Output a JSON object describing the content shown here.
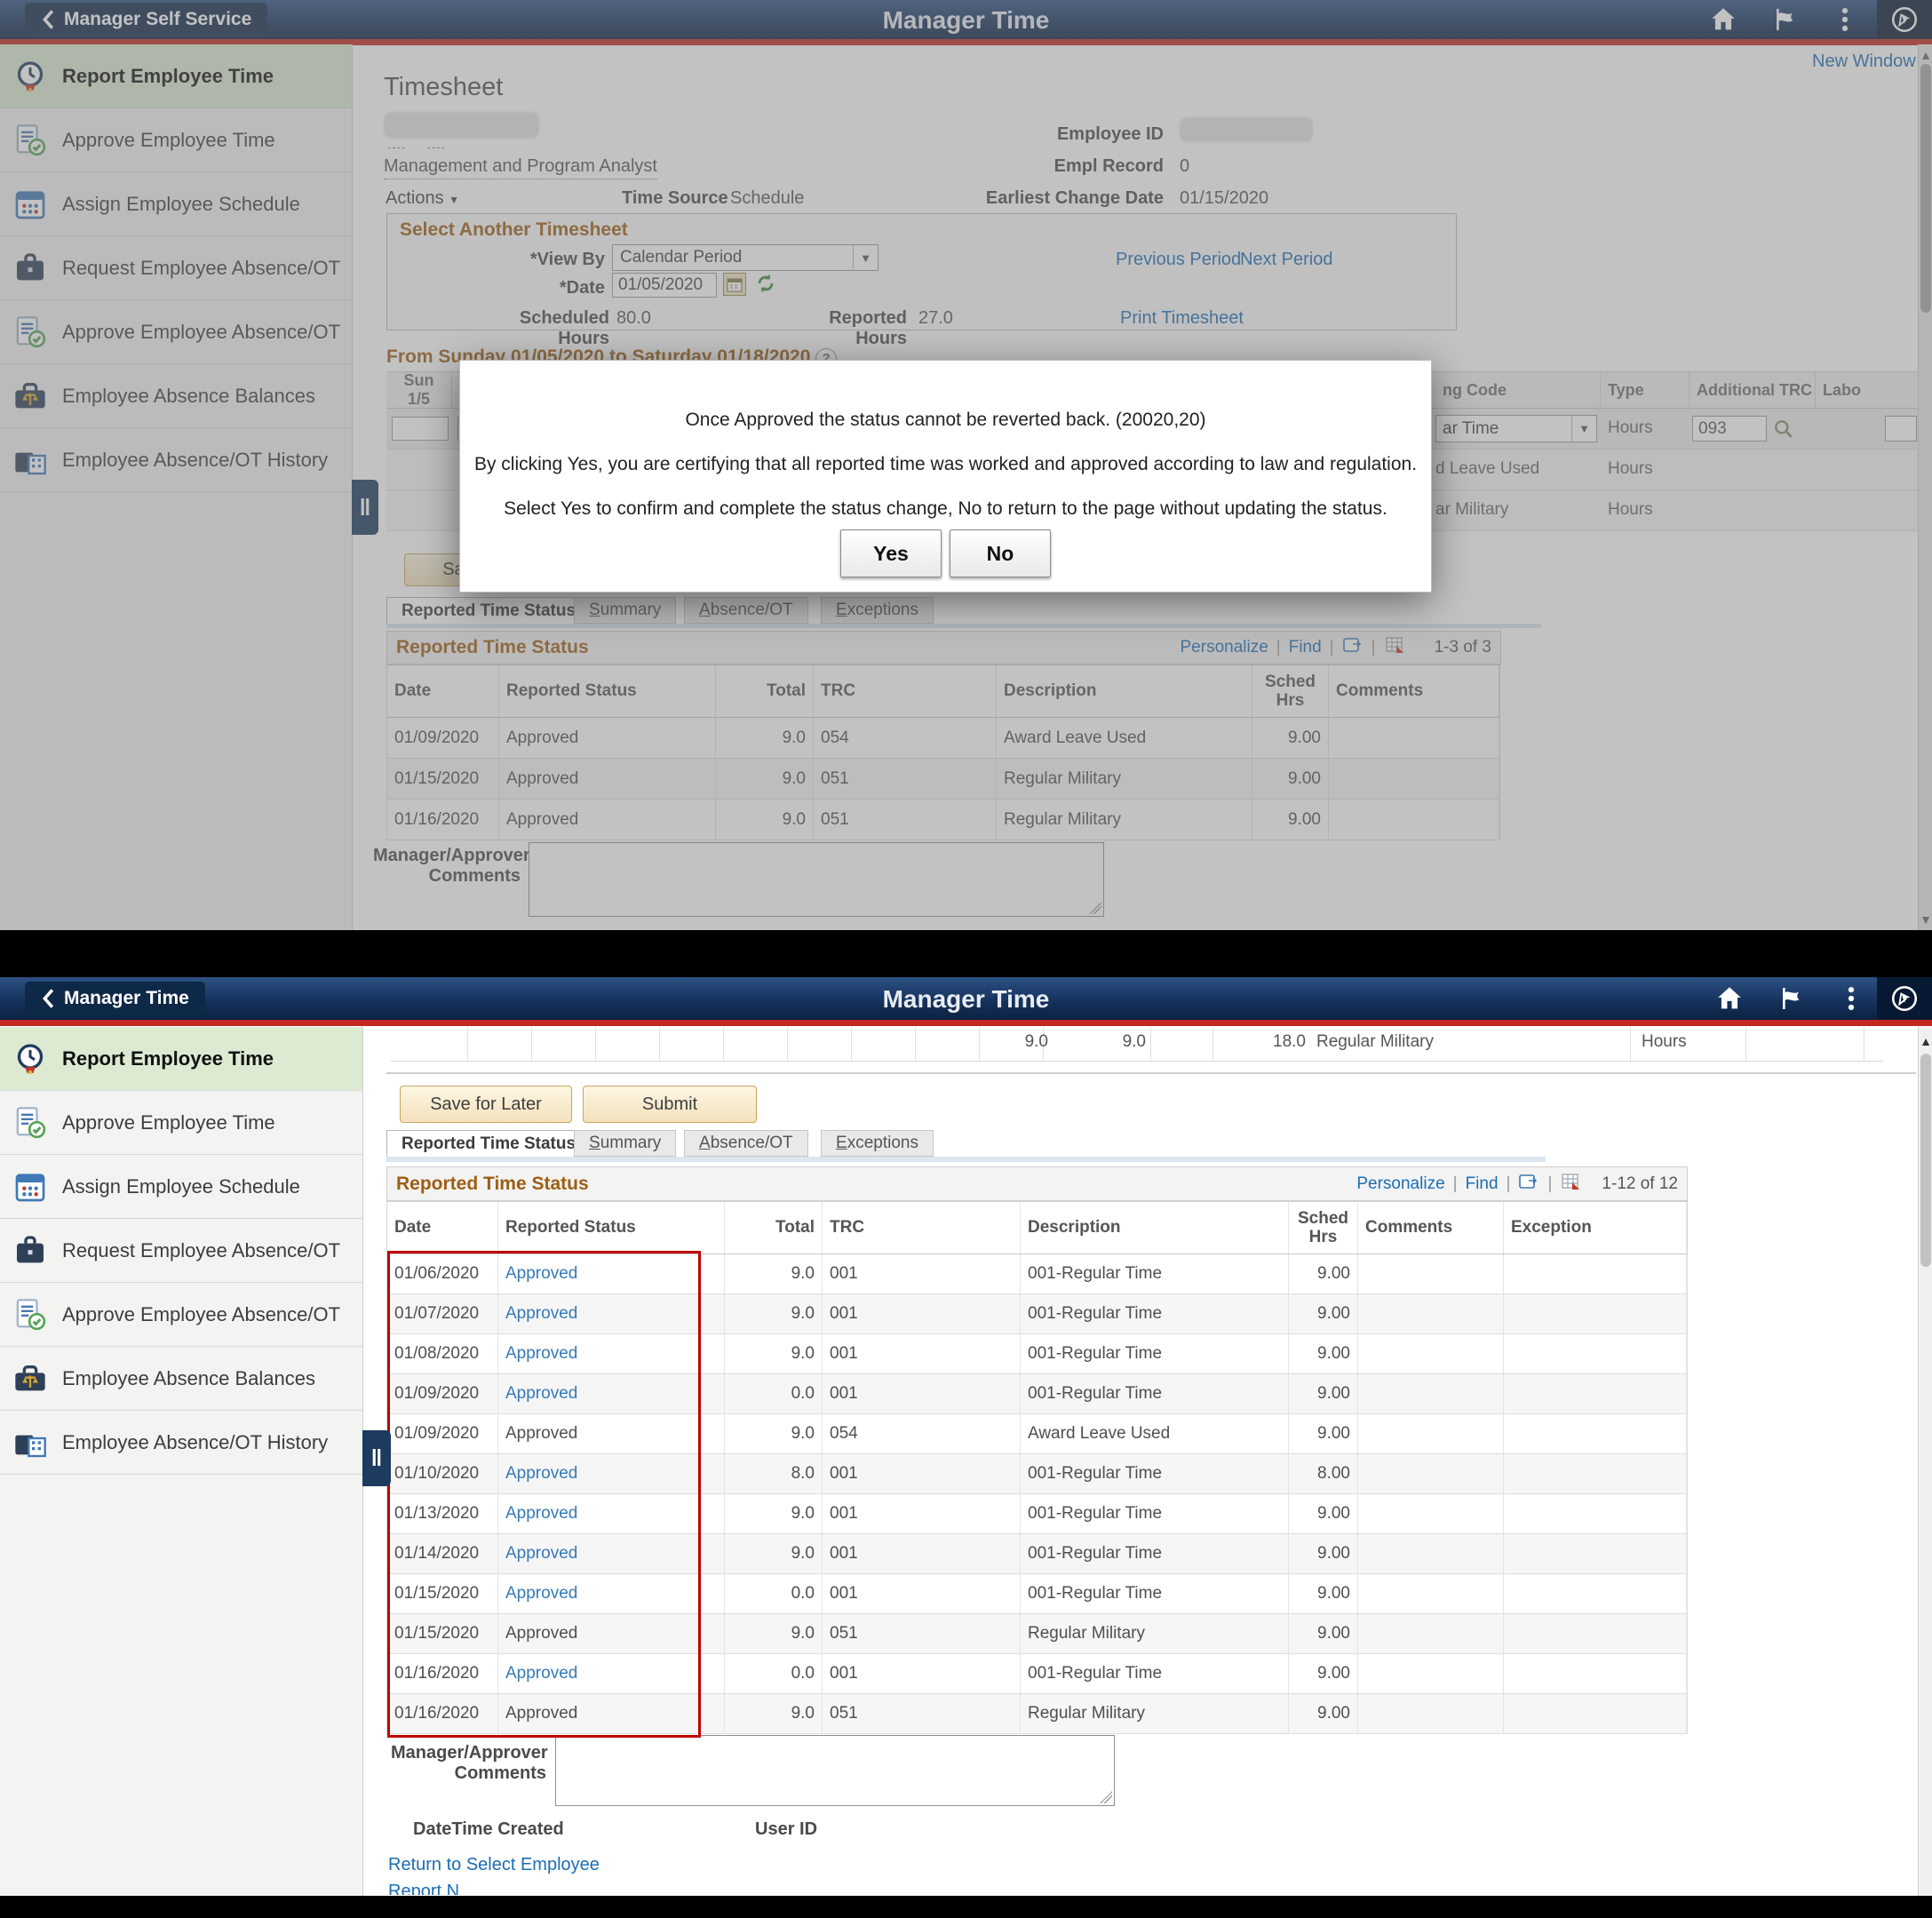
{
  "sidebar": {
    "items": [
      {
        "label": "Report Employee Time",
        "icon": "clock-icon",
        "active": true
      },
      {
        "label": "Approve Employee Time",
        "icon": "approve-doc-icon",
        "active": false
      },
      {
        "label": "Assign Employee Schedule",
        "icon": "calendar-icon",
        "active": false
      },
      {
        "label": "Request Employee Absence/OT",
        "icon": "briefcase-icon",
        "active": false
      },
      {
        "label": "Approve Employee Absence/OT",
        "icon": "approve-doc-icon",
        "active": false
      },
      {
        "label": "Employee Absence Balances",
        "icon": "balances-icon",
        "active": false
      },
      {
        "label": "Employee Absence/OT History",
        "icon": "history-icon",
        "active": false
      }
    ]
  },
  "tabs": {
    "items": [
      {
        "label": "Reported Time Status",
        "active": true,
        "underline_first": false
      },
      {
        "label": "Summary",
        "active": false,
        "underline_first": true
      },
      {
        "label": "Absence/OT",
        "active": false,
        "underline_first": true
      },
      {
        "label": "Exceptions",
        "active": false,
        "underline_first": true
      }
    ]
  },
  "top": {
    "header": {
      "back_label": "Manager Self Service",
      "title": "Manager Time"
    },
    "new_window": "New Window",
    "page": {
      "title": "Timesheet",
      "job_title": "Management and Program Analyst",
      "actions_label": "Actions",
      "time_source_label": "Time Source",
      "time_source_value": "Schedule",
      "employee_id_label": "Employee ID",
      "empl_record_label": "Empl Record",
      "empl_record_value": "0",
      "earliest_change_label": "Earliest Change Date",
      "earliest_change_value": "01/15/2020"
    },
    "select_box": {
      "title": "Select Another Timesheet",
      "view_by_label": "*View By",
      "view_by_value": "Calendar Period",
      "date_label": "*Date",
      "date_value": "01/05/2020",
      "previous_period": "Previous Period",
      "next_period": "Next Period",
      "scheduled_hours_label": "Scheduled Hours",
      "scheduled_hours_value": "80.0",
      "reported_hours_label": "Reported Hours",
      "reported_hours_value": "27.0",
      "print_timesheet": "Print Timesheet"
    },
    "period_header": "From Sunday 01/05/2020 to Saturday 01/18/2020",
    "grid": {
      "day_name": "Sun",
      "day_date": "1/5",
      "col_code": "ng Code",
      "col_type": "Type",
      "col_additional_trc": "Additional TRC",
      "col_labor": "Labo",
      "row1_code": "ar Time",
      "row1_type": "Hours",
      "row1_additional_trc": "093",
      "row2_code": "d Leave Used",
      "row2_type": "Hours",
      "row3_code": "ar Military",
      "row3_type": "Hours"
    },
    "save_label": "Save",
    "rts": {
      "title": "Reported Time Status",
      "personalize": "Personalize",
      "find": "Find",
      "count": "1-3 of 3",
      "columns": [
        "Date",
        "Reported Status",
        "Total",
        "TRC",
        "Description",
        "Sched Hrs",
        "Comments"
      ],
      "rows": [
        {
          "date": "01/09/2020",
          "status": "Approved",
          "total": "9.0",
          "trc": "054",
          "description": "Award Leave Used",
          "sched_hrs": "9.00",
          "comments": ""
        },
        {
          "date": "01/15/2020",
          "status": "Approved",
          "total": "9.0",
          "trc": "051",
          "description": "Regular Military",
          "sched_hrs": "9.00",
          "comments": ""
        },
        {
          "date": "01/16/2020",
          "status": "Approved",
          "total": "9.0",
          "trc": "051",
          "description": "Regular Military",
          "sched_hrs": "9.00",
          "comments": ""
        }
      ]
    },
    "comments_label_1": "Manager/Approver",
    "comments_label_2": "Comments",
    "modal": {
      "line1": "Once Approved the status cannot be reverted back. (20020,20)",
      "line2": "By clicking Yes, you are certifying that all reported time was worked and approved according to law and regulation.",
      "line3": "Select Yes to confirm and complete the status change, No to return to the page without updating the status.",
      "yes_label": "Yes",
      "no_label": "No"
    }
  },
  "bottom": {
    "header": {
      "back_label": "Manager Time",
      "title": "Manager Time"
    },
    "totals_row": {
      "value1": "9.0",
      "value2": "9.0",
      "value3": "18.0",
      "description": "Regular Military",
      "type": "Hours"
    },
    "save_for_later_label": "Save for Later",
    "submit_label": "Submit",
    "rts": {
      "title": "Reported Time Status",
      "personalize": "Personalize",
      "find": "Find",
      "count": "1-12 of 12",
      "columns": [
        "Date",
        "Reported Status",
        "Total",
        "TRC",
        "Description",
        "Sched Hrs",
        "Comments",
        "Exception"
      ],
      "rows": [
        {
          "date": "01/06/2020",
          "status": "Approved",
          "status_link": true,
          "total": "9.0",
          "trc": "001",
          "description": "001-Regular Time",
          "sched_hrs": "9.00"
        },
        {
          "date": "01/07/2020",
          "status": "Approved",
          "status_link": true,
          "total": "9.0",
          "trc": "001",
          "description": "001-Regular Time",
          "sched_hrs": "9.00"
        },
        {
          "date": "01/08/2020",
          "status": "Approved",
          "status_link": true,
          "total": "9.0",
          "trc": "001",
          "description": "001-Regular Time",
          "sched_hrs": "9.00"
        },
        {
          "date": "01/09/2020",
          "status": "Approved",
          "status_link": true,
          "total": "0.0",
          "trc": "001",
          "description": "001-Regular Time",
          "sched_hrs": "9.00"
        },
        {
          "date": "01/09/2020",
          "status": "Approved",
          "status_link": false,
          "total": "9.0",
          "trc": "054",
          "description": "Award Leave Used",
          "sched_hrs": "9.00"
        },
        {
          "date": "01/10/2020",
          "status": "Approved",
          "status_link": true,
          "total": "8.0",
          "trc": "001",
          "description": "001-Regular Time",
          "sched_hrs": "8.00"
        },
        {
          "date": "01/13/2020",
          "status": "Approved",
          "status_link": true,
          "total": "9.0",
          "trc": "001",
          "description": "001-Regular Time",
          "sched_hrs": "9.00"
        },
        {
          "date": "01/14/2020",
          "status": "Approved",
          "status_link": true,
          "total": "9.0",
          "trc": "001",
          "description": "001-Regular Time",
          "sched_hrs": "9.00"
        },
        {
          "date": "01/15/2020",
          "status": "Approved",
          "status_link": true,
          "total": "0.0",
          "trc": "001",
          "description": "001-Regular Time",
          "sched_hrs": "9.00"
        },
        {
          "date": "01/15/2020",
          "status": "Approved",
          "status_link": false,
          "total": "9.0",
          "trc": "051",
          "description": "Regular Military",
          "sched_hrs": "9.00"
        },
        {
          "date": "01/16/2020",
          "status": "Approved",
          "status_link": true,
          "total": "0.0",
          "trc": "001",
          "description": "001-Regular Time",
          "sched_hrs": "9.00"
        },
        {
          "date": "01/16/2020",
          "status": "Approved",
          "status_link": false,
          "total": "9.0",
          "trc": "051",
          "description": "Regular Military",
          "sched_hrs": "9.00"
        }
      ]
    },
    "comments_label_1": "Manager/Approver",
    "comments_label_2": "Comments",
    "datetime_created_label": "DateTime Created",
    "user_id_label": "User ID",
    "return_link": "Return to Select Employee",
    "clipped_link": "Report N"
  }
}
